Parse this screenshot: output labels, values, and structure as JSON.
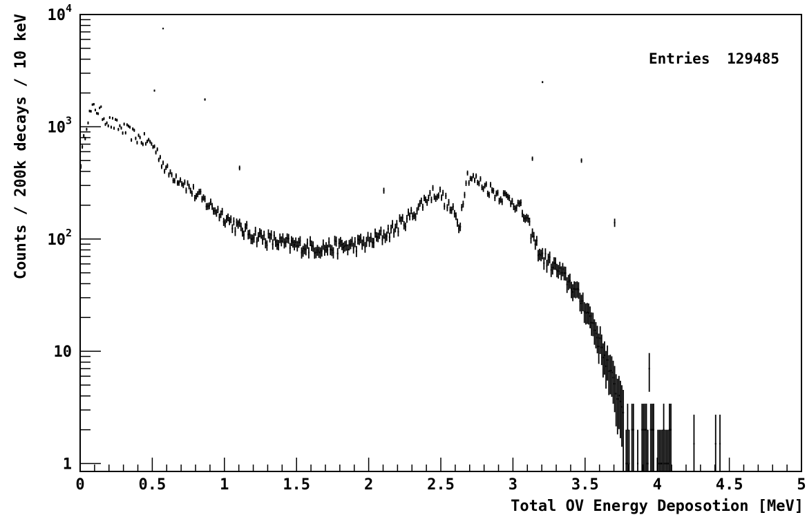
{
  "chart_data": {
    "type": "histogram",
    "title": "",
    "xlabel": "Total OV Energy Deposotion [MeV]",
    "ylabel": "Counts / 200k decays / 10 keV",
    "xlim": [
      0,
      5
    ],
    "ylim": [
      0.85,
      10000
    ],
    "y_scale": "log",
    "grid": false,
    "x_ticks": [
      {
        "value": 0,
        "label": "0"
      },
      {
        "value": 0.5,
        "label": "0.5"
      },
      {
        "value": 1,
        "label": "1"
      },
      {
        "value": 1.5,
        "label": "1.5"
      },
      {
        "value": 2,
        "label": "2"
      },
      {
        "value": 2.5,
        "label": "2.5"
      },
      {
        "value": 3,
        "label": "3"
      },
      {
        "value": 3.5,
        "label": "3.5"
      },
      {
        "value": 4,
        "label": "4"
      },
      {
        "value": 4.5,
        "label": "4.5"
      },
      {
        "value": 5,
        "label": "5"
      }
    ],
    "y_ticks": [
      {
        "value": 1,
        "base": "1",
        "exp": ""
      },
      {
        "value": 10,
        "base": "10",
        "exp": ""
      },
      {
        "value": 100,
        "base": "10",
        "exp": "2"
      },
      {
        "value": 1000,
        "base": "10",
        "exp": "3"
      },
      {
        "value": 10000,
        "base": "10",
        "exp": "4"
      }
    ],
    "stats": {
      "label": "Entries",
      "value": "129485"
    },
    "bin_width": 0.01,
    "x": [
      0.0,
      0.05,
      0.1,
      0.15,
      0.2,
      0.3,
      0.4,
      0.45,
      0.5,
      0.55,
      0.6,
      0.7,
      0.8,
      0.9,
      1.0,
      1.1,
      1.2,
      1.3,
      1.4,
      1.5,
      1.6,
      1.7,
      1.8,
      1.9,
      2.0,
      2.1,
      2.2,
      2.3,
      2.4,
      2.45,
      2.5,
      2.55,
      2.6,
      2.63,
      2.66,
      2.68,
      2.75,
      2.8,
      2.9,
      3.0,
      3.05,
      3.1,
      3.15,
      3.2,
      3.3,
      3.4,
      3.5,
      3.55,
      3.6,
      3.65,
      3.7,
      3.75,
      3.8,
      3.85,
      3.9,
      3.95,
      4.0,
      4.1
    ],
    "y": [
      450,
      1200,
      1500,
      1300,
      1100,
      950,
      800,
      750,
      700,
      550,
      400,
      340,
      250,
      200,
      160,
      125,
      110,
      100,
      92,
      88,
      85,
      84,
      85,
      88,
      95,
      108,
      130,
      165,
      230,
      260,
      250,
      200,
      160,
      130,
      260,
      370,
      330,
      300,
      250,
      220,
      190,
      140,
      95,
      70,
      55,
      40,
      25,
      18,
      12,
      8,
      5,
      3.5,
      2.5,
      2,
      1.5,
      1.2,
      1,
      1
    ],
    "outliers": [
      {
        "x": 0.57,
        "y": 7500
      },
      {
        "x": 0.51,
        "y": 2100
      },
      {
        "x": 0.86,
        "y": 1750
      },
      {
        "x": 1.1,
        "y": 430
      },
      {
        "x": 2.1,
        "y": 270
      },
      {
        "x": 3.13,
        "y": 520
      },
      {
        "x": 3.2,
        "y": 2500
      },
      {
        "x": 3.47,
        "y": 500
      },
      {
        "x": 3.7,
        "y": 140
      },
      {
        "x": 3.94,
        "y": 7
      },
      {
        "x": 4.25,
        "y": 1.5
      },
      {
        "x": 4.4,
        "y": 1.5
      },
      {
        "x": 4.43,
        "y": 1.5
      }
    ]
  }
}
